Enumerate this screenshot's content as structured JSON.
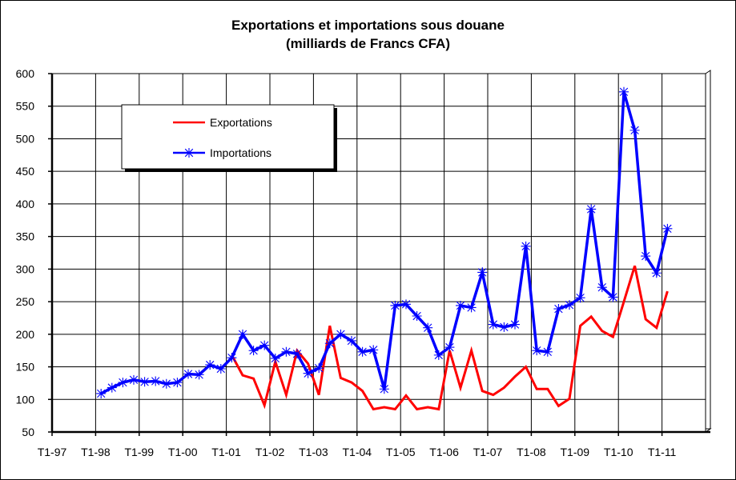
{
  "chart_data": {
    "type": "line",
    "title": "Exportations et importations sous douane",
    "subtitle": "(milliards de Francs CFA)",
    "xlabel": "",
    "ylabel": "",
    "ylim": [
      50,
      600
    ],
    "y_ticks": [
      50,
      100,
      150,
      200,
      250,
      300,
      350,
      400,
      450,
      500,
      550,
      600
    ],
    "x_tick_labels": [
      "T1-97",
      "T1-98",
      "T1-99",
      "T1-00",
      "T1-01",
      "T1-02",
      "T1-03",
      "T1-04",
      "T1-05",
      "T1-06",
      "T1-07",
      "T1-08",
      "T1-09",
      "T1-10",
      "T1-11"
    ],
    "grid": true,
    "legend_position": "top-left",
    "series": [
      {
        "name": "Exportations",
        "color": "#ff0000",
        "marker": "none",
        "start_quarter_index": 16,
        "values": [
          168,
          137,
          132,
          91,
          158,
          107,
          175,
          155,
          107,
          213,
          133,
          126,
          113,
          85,
          88,
          85,
          106,
          85,
          88,
          85,
          175,
          118,
          175,
          113,
          107,
          118,
          135,
          150,
          116,
          116,
          90,
          101,
          213,
          227,
          205,
          196,
          250,
          305,
          223,
          210,
          266
        ]
      },
      {
        "name": "Importations",
        "color": "#0000ff",
        "marker": "asterisk",
        "start_quarter_index": 4,
        "values": [
          109,
          118,
          126,
          130,
          127,
          128,
          124,
          126,
          139,
          138,
          153,
          147,
          164,
          200,
          175,
          183,
          163,
          173,
          170,
          140,
          148,
          186,
          200,
          190,
          173,
          176,
          116,
          244,
          246,
          228,
          210,
          168,
          180,
          244,
          241,
          295,
          215,
          211,
          215,
          335,
          175,
          173,
          239,
          245,
          256,
          392,
          272,
          257,
          572,
          513,
          320,
          294,
          362
        ]
      }
    ]
  }
}
